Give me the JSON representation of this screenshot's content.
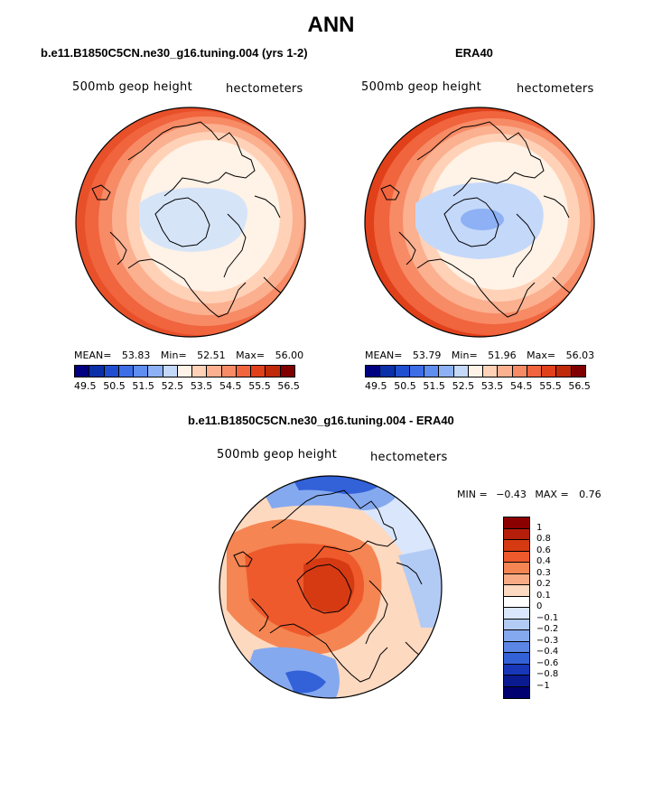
{
  "figure": {
    "title": "ANN"
  },
  "panels": {
    "model": {
      "title": "b.e11.B1850C5CN.ne30_g16.tuning.004 (yrs 1-2)",
      "field_label": "500mb geop height",
      "units_label": "hectometers",
      "mean_label": "MEAN=",
      "mean_value": "53.83",
      "min_label": "Min=",
      "min_value": "52.51",
      "max_label": "Max=",
      "max_value": "56.00"
    },
    "obs": {
      "title": "ERA40",
      "field_label": "500mb geop height",
      "units_label": "hectometers",
      "mean_label": "MEAN=",
      "mean_value": "53.79",
      "min_label": "Min=",
      "min_value": "51.96",
      "max_label": "Max=",
      "max_value": "56.03"
    },
    "diff": {
      "title": "b.e11.B1850C5CN.ne30_g16.tuning.004 - ERA40",
      "field_label": "500mb geop height",
      "units_label": "hectometers",
      "min_label": "MIN =",
      "min_value": "−0.43",
      "max_label": "MAX =",
      "max_value": "0.76"
    }
  },
  "colorbar_abs": {
    "ticks": [
      "49.5",
      "50.5",
      "51.5",
      "52.5",
      "53.5",
      "54.5",
      "55.5",
      "56.5"
    ],
    "colors": [
      "#000080",
      "#0a2fa8",
      "#1f4fd0",
      "#3d6ee8",
      "#5f8ef0",
      "#8db1f4",
      "#c4d8fa",
      "#fff2e6",
      "#ffd2b8",
      "#fbb090",
      "#f78b66",
      "#f0643e",
      "#e0401a",
      "#c02a0a",
      "#800000"
    ]
  },
  "colorbar_diff": {
    "labels": [
      "1",
      "0.8",
      "0.6",
      "0.4",
      "0.3",
      "0.2",
      "0.1",
      "0",
      "−0.1",
      "−0.2",
      "−0.3",
      "−0.4",
      "−0.6",
      "−0.8",
      "−1"
    ],
    "colors": [
      "#8b0000",
      "#b51e0a",
      "#d63a12",
      "#ee5a2c",
      "#f58552",
      "#f9ab85",
      "#fdd9c0",
      "#ffffff",
      "#d9e6fb",
      "#b2cbf5",
      "#85a9ef",
      "#5b86e6",
      "#3261d8",
      "#1737b8",
      "#0a1a90",
      "#000070"
    ]
  }
}
